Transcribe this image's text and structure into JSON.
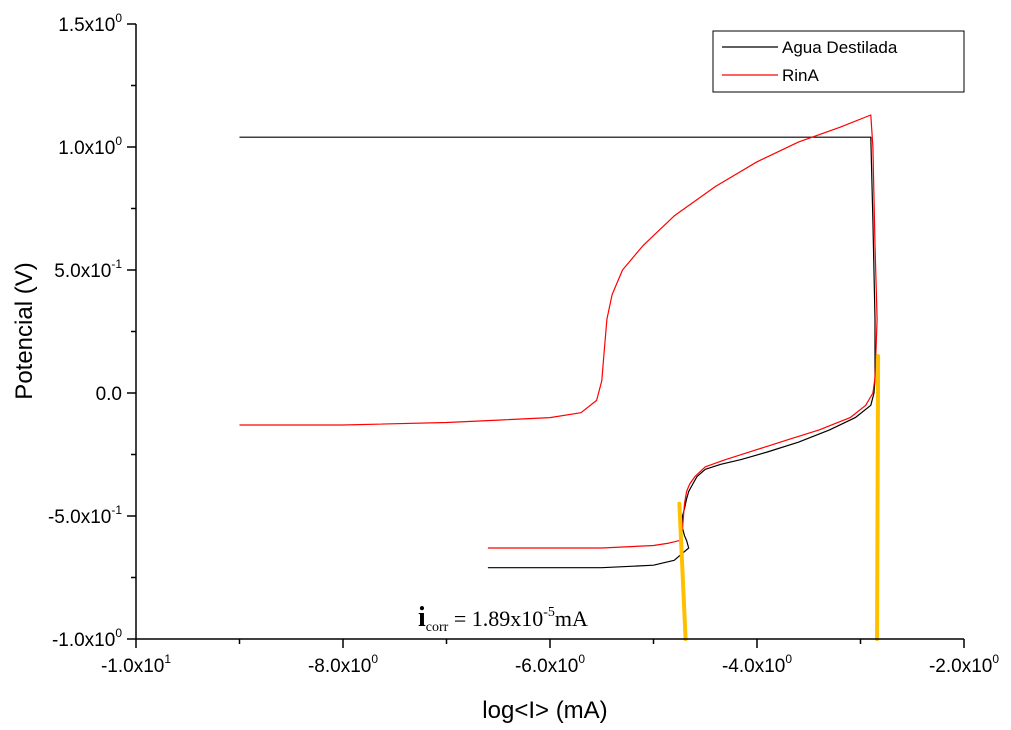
{
  "chart_data": {
    "type": "line",
    "title": "",
    "xlabel": "log<I> (mA)",
    "ylabel": "Potencial (V)",
    "xlim": [
      -10.0,
      -2.0
    ],
    "ylim": [
      -1.0,
      1.5
    ],
    "grid": false,
    "legend_position": "top-right",
    "x_ticks": [
      {
        "value": -10.0,
        "mantissa": "-1.0x10",
        "exp": "1"
      },
      {
        "value": -8.0,
        "mantissa": "-8.0x10",
        "exp": "0"
      },
      {
        "value": -6.0,
        "mantissa": "-6.0x10",
        "exp": "0"
      },
      {
        "value": -4.0,
        "mantissa": "-4.0x10",
        "exp": "0"
      },
      {
        "value": -2.0,
        "mantissa": "-2.0x10",
        "exp": "0"
      }
    ],
    "y_ticks": [
      {
        "value": -1.0,
        "mantissa": "-1.0x10",
        "exp": "0"
      },
      {
        "value": -0.5,
        "mantissa": "-5.0x10",
        "exp": "-1"
      },
      {
        "value": 0.0,
        "mantissa": "0.0",
        "exp": ""
      },
      {
        "value": 0.5,
        "mantissa": "5.0x10",
        "exp": "-1"
      },
      {
        "value": 1.0,
        "mantissa": "1.0x10",
        "exp": "0"
      },
      {
        "value": 1.5,
        "mantissa": "1.5x10",
        "exp": "0"
      }
    ],
    "series": [
      {
        "name": "Agua Destilada",
        "color": "#000000",
        "x": [
          -9.0,
          -2.9,
          -2.88,
          -2.86,
          -2.86,
          -2.87,
          -2.9,
          -3.05,
          -3.3,
          -3.6,
          -3.9,
          -4.15,
          -4.35,
          -4.5,
          -4.58,
          -4.62,
          -4.66,
          -4.68,
          -4.7,
          -4.72,
          -4.72,
          -4.7,
          -4.68,
          -4.66,
          -4.8,
          -5.0,
          -5.5,
          -6.0,
          -6.6
        ],
        "y": [
          1.04,
          1.04,
          0.7,
          0.3,
          0.06,
          0.0,
          -0.05,
          -0.1,
          -0.15,
          -0.2,
          -0.24,
          -0.27,
          -0.29,
          -0.31,
          -0.34,
          -0.37,
          -0.4,
          -0.43,
          -0.47,
          -0.5,
          -0.55,
          -0.58,
          -0.6,
          -0.63,
          -0.68,
          -0.7,
          -0.71,
          -0.71,
          -0.71
        ]
      },
      {
        "name": "RinA",
        "color": "#ff0000",
        "x": [
          -6.6,
          -6.0,
          -5.5,
          -5.0,
          -4.85,
          -4.75,
          -4.72,
          -4.7,
          -4.68,
          -4.65,
          -4.6,
          -4.5,
          -4.3,
          -4.0,
          -3.7,
          -3.4,
          -3.1,
          -2.95,
          -2.88,
          -2.86,
          -2.84,
          -2.86,
          -2.88,
          -2.9,
          -3.2,
          -3.6,
          -4.0,
          -4.4,
          -4.8,
          -5.1,
          -5.3,
          -5.4,
          -5.45,
          -5.48,
          -5.5,
          -5.55,
          -5.7,
          -6.0,
          -6.5,
          -7.0,
          -8.0,
          -9.0
        ],
        "y": [
          -0.63,
          -0.63,
          -0.63,
          -0.62,
          -0.61,
          -0.6,
          -0.55,
          -0.45,
          -0.4,
          -0.37,
          -0.34,
          -0.3,
          -0.27,
          -0.23,
          -0.19,
          -0.15,
          -0.1,
          -0.05,
          0.0,
          0.06,
          0.3,
          0.6,
          1.0,
          1.13,
          1.08,
          1.02,
          0.94,
          0.84,
          0.72,
          0.6,
          0.5,
          0.4,
          0.3,
          0.15,
          0.05,
          -0.03,
          -0.08,
          -0.1,
          -0.11,
          -0.12,
          -0.13,
          -0.13
        ]
      }
    ],
    "tafel_lines": [
      {
        "color": "#ffc000",
        "x": [
          -4.75,
          -4.69
        ],
        "y": [
          -0.45,
          -1.0
        ]
      },
      {
        "color": "#ffc000",
        "x": [
          -2.83,
          -2.84
        ],
        "y": [
          0.15,
          -1.0
        ]
      }
    ],
    "annotation": {
      "main": "i",
      "sub": "corr",
      "mid": " = 1.89x10",
      "exp": "-5",
      "unit": "mA"
    }
  }
}
